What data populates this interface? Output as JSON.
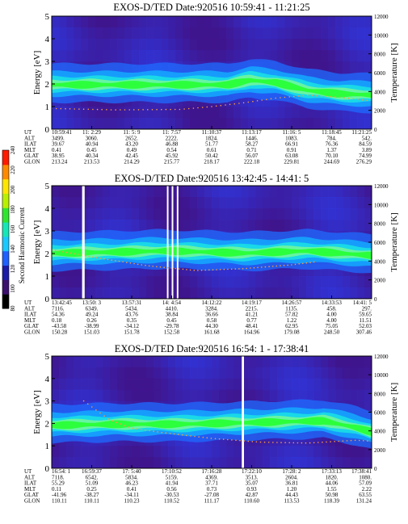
{
  "figure": {
    "colorbar": {
      "label": "Second Harmonic Current",
      "ticks": [
        "80",
        "100",
        "120",
        "140",
        "160",
        "180",
        "200",
        "220",
        "240"
      ]
    },
    "row_labels": [
      "UT",
      "ALT",
      "ILAT",
      "MLT",
      "GLAT",
      "GLON"
    ]
  },
  "chart_data": [
    {
      "type": "heatmap",
      "title": "EXOS-D/TED   Date:920516   10:59:41 - 11:21:25",
      "ylabel": "Energy [eV]",
      "y2label": "Temperature [K]",
      "ylim": [
        0,
        5
      ],
      "yticks": [
        "0",
        "1",
        "2",
        "3",
        "4",
        "5"
      ],
      "y2lim": [
        0,
        12000
      ],
      "y2ticks": [
        "0",
        "2000",
        "4000",
        "6000",
        "8000",
        "10000",
        "12000"
      ],
      "columns": [
        {
          "UT": "10:59:41",
          "ALT": "3499.",
          "ILAT": "39.67",
          "MLT": "0.41",
          "GLAT": "38.95",
          "GLON": "213.24"
        },
        {
          "UT": "11: 2:29",
          "ALT": "3060.",
          "ILAT": "40.94",
          "MLT": "0.45",
          "GLAT": "40.34",
          "GLON": "213.53"
        },
        {
          "UT": "11: 5: 9",
          "ALT": "2652.",
          "ILAT": "43.20",
          "MLT": "0.49",
          "GLAT": "42.45",
          "GLON": "214.29"
        },
        {
          "UT": "11: 7:57",
          "ALT": "2222.",
          "ILAT": "46.88",
          "MLT": "0.54",
          "GLAT": "45.92",
          "GLON": "215.77"
        },
        {
          "UT": "11:10:37",
          "ALT": "1824.",
          "ILAT": "51.77",
          "MLT": "0.61",
          "GLAT": "50.42",
          "GLON": "218.17"
        },
        {
          "UT": "11:13:17",
          "ALT": "1446.",
          "ILAT": "58.27",
          "MLT": "0.71",
          "GLAT": "56.07",
          "GLON": "222.18"
        },
        {
          "UT": "11:16: 5",
          "ALT": "1083.",
          "ILAT": "66.91",
          "MLT": "0.91",
          "GLAT": "63.08",
          "GLON": "229.81"
        },
        {
          "UT": "11:18:45",
          "ALT": "784.",
          "ILAT": "76.36",
          "MLT": "1.37",
          "GLAT": "70.10",
          "GLON": "244.69"
        },
        {
          "UT": "11:21:25",
          "ALT": "542.",
          "ILAT": "84.59",
          "MLT": "3.89",
          "GLAT": "74.99",
          "GLON": "276.29"
        }
      ],
      "peak_energy_band": {
        "t": [
          0,
          0.2,
          0.4,
          0.55,
          0.62,
          0.7,
          0.8,
          0.9,
          1.0
        ],
        "energy_eV": [
          1.95,
          1.95,
          1.95,
          1.95,
          2.15,
          2.05,
          1.7,
          1.55,
          1.5
        ]
      },
      "temperature_trace": {
        "t": [
          0,
          0.2,
          0.4,
          0.5,
          0.6,
          0.7,
          0.8,
          0.9,
          1.0
        ],
        "temperature_K": [
          2200,
          2050,
          2100,
          2400,
          2800,
          3300,
          3600,
          3400,
          3000
        ]
      }
    },
    {
      "type": "heatmap",
      "title": "EXOS-D/TED   Date:920516   13:42:45 - 14:41: 5",
      "ylabel": "Energy [eV]",
      "y2label": "Temperature [K]",
      "ylim": [
        0,
        5
      ],
      "yticks": [
        "0",
        "1",
        "2",
        "3",
        "4",
        "5"
      ],
      "y2lim": [
        0,
        12000
      ],
      "y2ticks": [
        "0",
        "2000",
        "4000",
        "6000",
        "8000",
        "10000",
        "12000"
      ],
      "columns": [
        {
          "UT": "13:42:45",
          "ALT": "7116.",
          "ILAT": "54.36",
          "MLT": "0.18",
          "GLAT": "-43.58",
          "GLON": "150.28"
        },
        {
          "UT": "13:50: 3",
          "ALT": "6349.",
          "ILAT": "49.24",
          "MLT": "0.26",
          "GLAT": "-38.99",
          "GLON": "151.03"
        },
        {
          "UT": "13:57:31",
          "ALT": "5434.",
          "ILAT": "43.76",
          "MLT": "0.35",
          "GLAT": "-34.12",
          "GLON": "151.78"
        },
        {
          "UT": "14: 4:54",
          "ALT": "4410.",
          "ILAT": "38.84",
          "MLT": "0.45",
          "GLAT": "-29.78",
          "GLON": "152.58"
        },
        {
          "UT": "14:12:22",
          "ALT": "3284.",
          "ILAT": "36.66",
          "MLT": "0.58",
          "GLAT": "44.30",
          "GLON": "161.68"
        },
        {
          "UT": "14:19:17",
          "ALT": "2215.",
          "ILAT": "41.21",
          "MLT": "0.77",
          "GLAT": "48.41",
          "GLON": "164.96"
        },
        {
          "UT": "14:26:57",
          "ALT": "1135.",
          "ILAT": "57.82",
          "MLT": "1.22",
          "GLAT": "62.95",
          "GLON": "179.08"
        },
        {
          "UT": "14:33:53",
          "ALT": "458.",
          "ILAT": "4.00",
          "MLT": "4.00",
          "GLAT": "75.05",
          "GLON": "248.50"
        },
        {
          "UT": "14:41: 5",
          "ALT": "297.",
          "ILAT": "59.65",
          "MLT": "11.51",
          "GLAT": "52.03",
          "GLON": "307.46"
        }
      ],
      "peak_energy_band": {
        "t": [
          0,
          0.2,
          0.35,
          0.5,
          0.6,
          0.7,
          0.8,
          0.9,
          1.0
        ],
        "energy_eV": [
          2.0,
          2.05,
          2.1,
          2.05,
          2.0,
          2.05,
          2.1,
          2.0,
          1.9
        ]
      },
      "temperature_trace": {
        "t": [
          0,
          0.15,
          0.3,
          0.45,
          0.6,
          0.75,
          0.82
        ],
        "temperature_K": [
          5200,
          4300,
          3500,
          3000,
          3200,
          3600,
          3900
        ]
      }
    },
    {
      "type": "heatmap",
      "title": "EXOS-D/TED   Date:920516   16:54: 1 - 17:38:41",
      "ylabel": "Energy [eV]",
      "y2label": "Temperature [K]",
      "ylim": [
        0,
        5
      ],
      "yticks": [
        "0",
        "1",
        "2",
        "3",
        "4",
        "5"
      ],
      "y2lim": [
        0,
        12000
      ],
      "y2ticks": [
        "0",
        "2000",
        "4000",
        "6000",
        "8000",
        "10000",
        "12000"
      ],
      "columns": [
        {
          "UT": "16:54: 1",
          "ALT": "7118.",
          "ILAT": "55.29",
          "MLT": "0.11",
          "GLAT": "-41.96",
          "GLON": "110.11"
        },
        {
          "UT": "16:59:37",
          "ALT": "6542.",
          "ILAT": "51.09",
          "MLT": "0.25",
          "GLAT": "-38.27",
          "GLON": "110.11"
        },
        {
          "UT": "17: 5:40",
          "ALT": "5834.",
          "ILAT": "46.23",
          "MLT": "0.41",
          "GLAT": "-34.11",
          "GLON": "110.23"
        },
        {
          "UT": "17:10:52",
          "ALT": "5159.",
          "ILAT": "41.94",
          "MLT": "0.56",
          "GLAT": "-30.53",
          "GLON": "110.52"
        },
        {
          "UT": "17:16:28",
          "ALT": "4369.",
          "ILAT": "37.71",
          "MLT": "0.73",
          "GLAT": "-27.08",
          "GLON": "111.17"
        },
        {
          "UT": "17:22:10",
          "ALT": "3513.",
          "ILAT": "35.07",
          "MLT": "0.93",
          "GLAT": "42.87",
          "GLON": "110.60"
        },
        {
          "UT": "17:28: 2",
          "ALT": "2604.",
          "ILAT": "36.81",
          "MLT": "1.20",
          "GLAT": "44.43",
          "GLON": "113.53"
        },
        {
          "UT": "17:33:13",
          "ALT": "1820.",
          "ILAT": "44.06",
          "MLT": "1.55",
          "GLAT": "50.98",
          "GLON": "118.39"
        },
        {
          "UT": "17:38:41",
          "ALT": "1080.",
          "ILAT": "57.09",
          "MLT": "2.22",
          "GLAT": "63.55",
          "GLON": "131.24"
        }
      ],
      "peak_energy_band": {
        "t": [
          0,
          0.2,
          0.4,
          0.55,
          0.7,
          0.85,
          0.95,
          1.0
        ],
        "energy_eV": [
          1.9,
          1.95,
          1.95,
          2.0,
          2.05,
          2.1,
          1.8,
          1.6
        ]
      },
      "temperature_trace": {
        "t": [
          0.1,
          0.18,
          0.25,
          0.35,
          0.5,
          0.65,
          0.8,
          0.95,
          1.0
        ],
        "temperature_K": [
          7200,
          5200,
          4300,
          3800,
          3200,
          2800,
          2700,
          3000,
          2900
        ]
      }
    }
  ]
}
